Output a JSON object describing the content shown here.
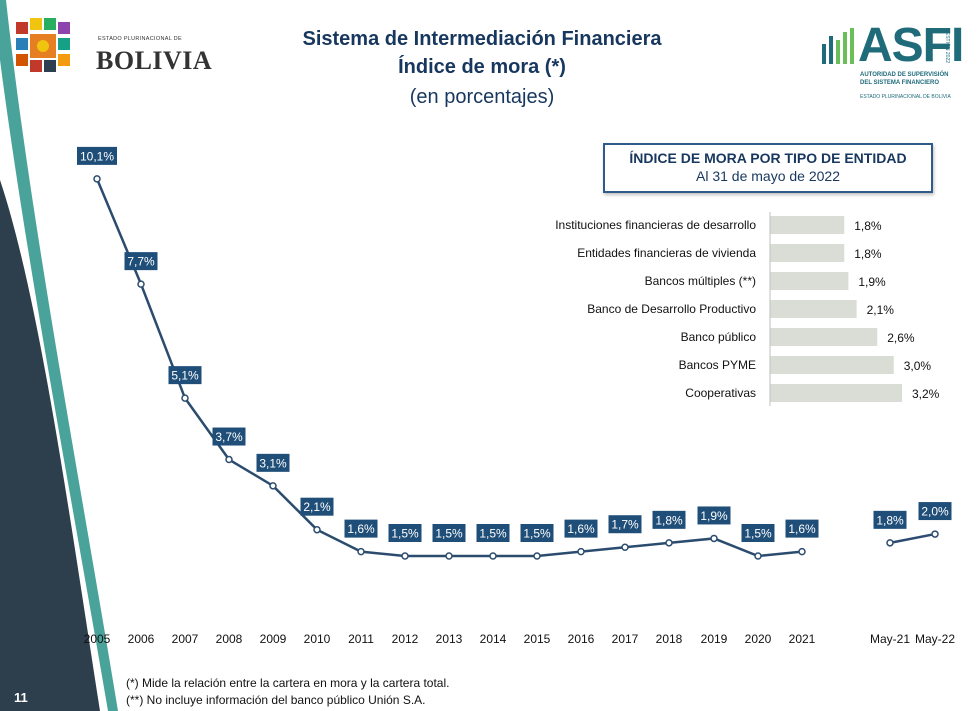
{
  "header": {
    "title_line1": "Sistema de Intermediación Financiera",
    "title_line2": "Índice de mora (*)",
    "title_line3": "(en porcentajes)"
  },
  "logo_left": {
    "small_text": "ESTADO PLURINACIONAL DE",
    "name": "BOLIVIA"
  },
  "logo_right": {
    "acronym": "ASFI",
    "line1": "AUTORIDAD DE SUPERVISIÓN",
    "line2": "DEL SISTEMA FINANCIERO",
    "line3": "ESTADO PLURINACIONAL DE BOLIVIA",
    "side_text": "GESTIÓN 2022"
  },
  "colors": {
    "navy": "#17375e",
    "teal": "#1f6b7a",
    "line": "#2b4c6f",
    "label_bg": "#1f4e79",
    "bar": "#d9ddd6",
    "sidebar_dark": "#2d3e4c",
    "sidebar_teal": "#4aa39a"
  },
  "chart_data": [
    {
      "type": "line",
      "categories": [
        "2005",
        "2006",
        "2007",
        "2008",
        "2009",
        "2010",
        "2011",
        "2012",
        "2013",
        "2014",
        "2015",
        "2016",
        "2017",
        "2018",
        "2019",
        "2020",
        "2021",
        "May-21",
        "May-22"
      ],
      "values": [
        10.1,
        7.7,
        5.1,
        3.7,
        3.1,
        2.1,
        1.6,
        1.5,
        1.5,
        1.5,
        1.5,
        1.6,
        1.7,
        1.8,
        1.9,
        1.5,
        1.6,
        1.8,
        2.0
      ],
      "data_labels": [
        "10,1%",
        "7,7%",
        "5,1%",
        "3,7%",
        "3,1%",
        "2,1%",
        "1,6%",
        "1,5%",
        "1,5%",
        "1,5%",
        "1,5%",
        "1,6%",
        "1,7%",
        "1,8%",
        "1,9%",
        "1,5%",
        "1,6%",
        "1,8%",
        "2,0%"
      ],
      "segments": [
        [
          0,
          16
        ],
        [
          17,
          18
        ]
      ]
    },
    {
      "type": "bar",
      "orientation": "horizontal",
      "title": "ÍNDICE DE MORA POR TIPO DE ENTIDAD",
      "subtitle": "Al 31 de mayo de 2022",
      "categories": [
        "Instituciones financieras de desarrollo",
        "Entidades financieras de vivienda",
        "Bancos múltiples (**)",
        "Banco de Desarrollo Productivo",
        "Banco público",
        "Bancos PYME",
        "Cooperativas"
      ],
      "values": [
        1.8,
        1.8,
        1.9,
        2.1,
        2.6,
        3.0,
        3.2
      ],
      "data_labels": [
        "1,8%",
        "1,8%",
        "1,9%",
        "2,1%",
        "2,6%",
        "3,0%",
        "3,2%"
      ]
    }
  ],
  "footnotes": {
    "note1": "(*) Mide la relación entre la cartera en mora y la cartera total.",
    "note2": "(**) No incluye información del banco público Unión S.A."
  },
  "page_number": "11"
}
